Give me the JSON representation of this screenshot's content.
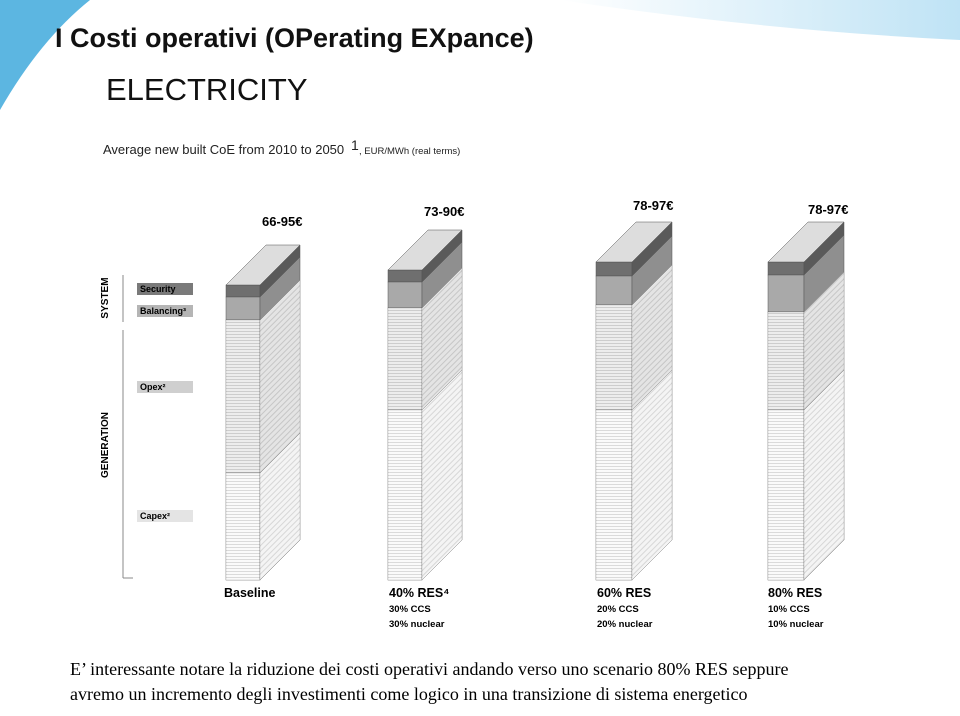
{
  "header": {
    "title": "I Costi operativi (OPerating EXpance)",
    "subtitle": "ELECTRICITY"
  },
  "figure": {
    "caption": "Average new built CoE from 2010 to 2050",
    "caption_sup": "1",
    "caption_units": ", EUR/MWh (real terms)",
    "groups": [
      "SYSTEM",
      "GENERATION"
    ],
    "legend": [
      "Security",
      "Balancing³",
      "Opex²",
      "Capex²"
    ],
    "scenarios": [
      {
        "range": "66-95€",
        "name": "Baseline",
        "details": []
      },
      {
        "range": "73-90€",
        "name": "40% RES⁴",
        "details": [
          "30% CCS",
          "30% nuclear"
        ]
      },
      {
        "range": "78-97€",
        "name": "60% RES",
        "details": [
          "20% CCS",
          "20% nuclear"
        ]
      },
      {
        "range": "78-97€",
        "name": "80% RES",
        "details": [
          "10% CCS",
          "10% nuclear"
        ]
      }
    ]
  },
  "body": {
    "lines": [
      "E’ interessante notare la riduzione dei costi operativi andando verso uno scenario 80% RES seppure",
      "avremo un incremento degli investimenti come logico in una transizione di sistema energetico"
    ]
  }
}
